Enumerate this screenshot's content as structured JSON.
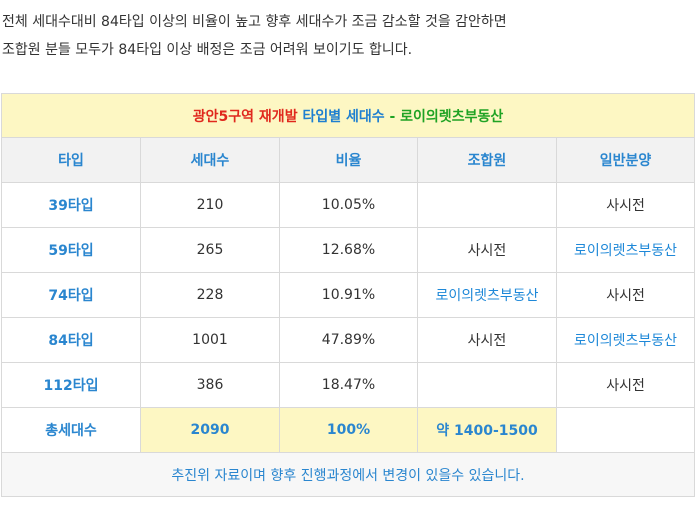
{
  "intro": {
    "line1": "전체 세대수대비 84타입 이상의 비율이 높고 향후 세대수가 조금 감소할 것을 감안하면",
    "line2": "조합원 분들 모두가 84타입 이상 배정은 조금 어려워 보이기도 합니다."
  },
  "table": {
    "title": {
      "part1": "광안5구역 재개발",
      "part2": "타입별 세대수",
      "part3": "- 로이의렛츠부동산"
    },
    "headers": [
      "타입",
      "세대수",
      "비율",
      "조합원",
      "일반분양"
    ],
    "rows": [
      {
        "type": "39타입",
        "units": "210",
        "ratio": "10.05%",
        "member": "",
        "general": "사시전"
      },
      {
        "type": "59타입",
        "units": "265",
        "ratio": "12.68%",
        "member": "사시전",
        "general": "로이의렛츠부동산"
      },
      {
        "type": "74타입",
        "units": "228",
        "ratio": "10.91%",
        "member": "로이의렛츠부동산",
        "general": "사시전"
      },
      {
        "type": "84타입",
        "units": "1001",
        "ratio": "47.89%",
        "member": "사시전",
        "general": "로이의렛츠부동산"
      },
      {
        "type": "112타입",
        "units": "386",
        "ratio": "18.47%",
        "member": "",
        "general": "사시전"
      }
    ],
    "total": {
      "label": "총세대수",
      "units": "2090",
      "ratio": "100%",
      "member": "약 1400-1500",
      "general": ""
    },
    "note": "추진위 자료이며 향후 진행과정에서 변경이 있을수 있습니다."
  }
}
